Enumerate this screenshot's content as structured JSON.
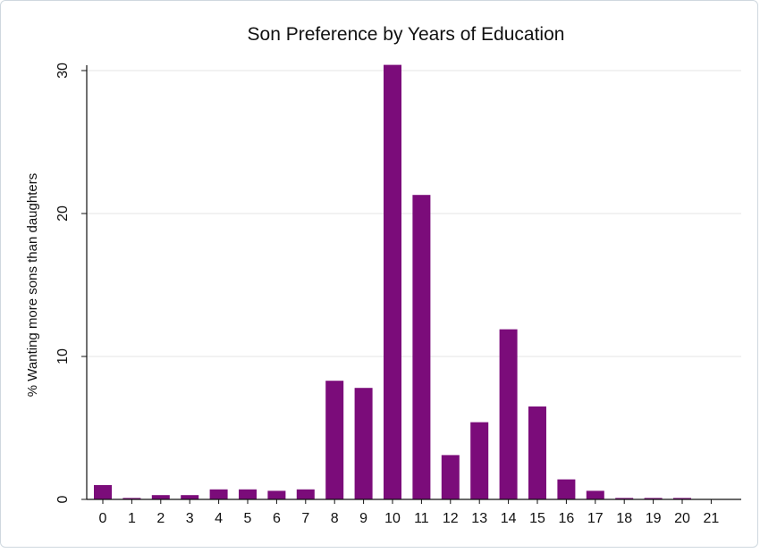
{
  "chart_data": {
    "type": "bar",
    "title": "Son Preference by Years of Education",
    "xlabel": "",
    "ylabel": "% Wanting more sons than daughters",
    "categories": [
      "0",
      "1",
      "2",
      "3",
      "4",
      "5",
      "6",
      "7",
      "8",
      "9",
      "10",
      "11",
      "12",
      "13",
      "14",
      "15",
      "16",
      "17",
      "18",
      "19",
      "20",
      "21"
    ],
    "values": [
      1.0,
      0.1,
      0.3,
      0.3,
      0.7,
      0.7,
      0.6,
      0.7,
      8.3,
      7.8,
      30.4,
      21.3,
      3.1,
      5.4,
      11.9,
      6.5,
      1.4,
      0.6,
      0.1,
      0.1,
      0.1,
      0.0
    ],
    "ylim": [
      0,
      30
    ],
    "yticks": [
      "0",
      "10",
      "20",
      "30"
    ],
    "grid": true,
    "bar_color": "#7b0c7a",
    "grid_color": "#e6e6e6"
  }
}
